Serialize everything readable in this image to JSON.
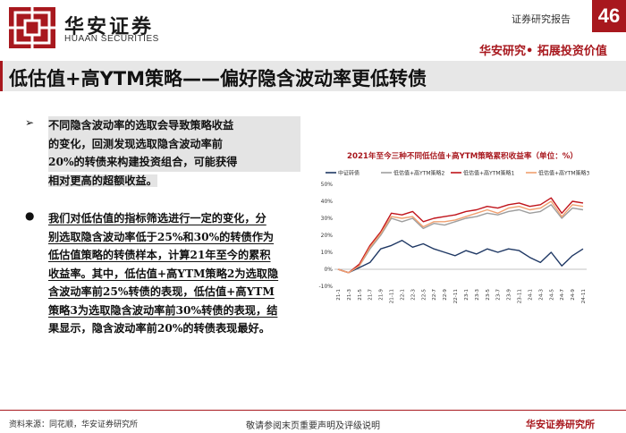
{
  "header": {
    "logo_cn": "华安证券",
    "logo_en": "HUAAN SECURITIES",
    "report_label": "证券研究报告",
    "page_number": "46",
    "slogan": "华安研究• 拓展投资价值",
    "brand_color": "#a8181e"
  },
  "title": "低估值+高YTM策略——偏好隐含波动率更低转债",
  "bullets": [
    {
      "symbol": "➢",
      "lines": [
        "不同隐含波动率的选取会导致策略收益",
        "的变化，回测发现选取隐含波动率前",
        "20%的转债来构建投资组合，可能获得",
        "相对更高的超额收益。"
      ]
    },
    {
      "symbol": "●",
      "lines": [
        "我们对低估值的指标筛选进行一定的变化，分",
        "别选取隐含波动率低于25%和30%的转债作为",
        "低估值策略的转债样本，计算21年至今的累积",
        "收益率。其中，低估值+高YTM策略2为选取隐",
        "含波动率前25%转债的表现，低估值+高YTM",
        "策略3为选取隐含波动率前30%转债的表现，结",
        "果显示，隐含波动率前20%的转债表现最好。"
      ]
    }
  ],
  "chart_data": {
    "type": "line",
    "title": "2021年至今三种不同低估值+高YTM策略累积收益率（单位：%）",
    "xlabel": "",
    "ylabel": "",
    "ylim": [
      -10,
      50
    ],
    "yticks": [
      "-10%",
      "0%",
      "10%",
      "20%",
      "30%",
      "40%",
      "50%"
    ],
    "xticks": [
      "21-1",
      "21-3",
      "21-5",
      "21-7",
      "21-9",
      "21-11",
      "22-1",
      "22-3",
      "22-5",
      "22-7",
      "22-9",
      "22-11",
      "23-1",
      "23-3",
      "23-5",
      "23-7",
      "23-9",
      "23-11",
      "24-1",
      "24-3",
      "24-5",
      "24-7",
      "24-9",
      "24-11"
    ],
    "grid": false,
    "legend_position": "top",
    "series": [
      {
        "name": "中证转债",
        "color": "#1f3864",
        "values": [
          0,
          -2,
          1,
          4,
          12,
          14,
          17,
          13,
          15,
          12,
          10,
          8,
          11,
          9,
          12,
          10,
          12,
          11,
          7,
          4,
          10,
          2,
          8,
          12
        ]
      },
      {
        "name": "低估值+高YTM策略2",
        "color": "#9e9e9e",
        "values": [
          0,
          -2,
          2,
          12,
          20,
          30,
          28,
          30,
          24,
          27,
          26,
          28,
          30,
          31,
          33,
          32,
          34,
          35,
          33,
          34,
          38,
          30,
          36,
          35
        ]
      },
      {
        "name": "低估值+高YTM策略1",
        "color": "#c0141b",
        "values": [
          0,
          -2,
          3,
          14,
          22,
          33,
          32,
          34,
          28,
          30,
          31,
          32,
          34,
          35,
          37,
          36,
          38,
          39,
          37,
          38,
          42,
          33,
          40,
          39
        ]
      },
      {
        "name": "低估值+高YTM策略3",
        "color": "#f0a070",
        "values": [
          0,
          -2,
          2,
          13,
          21,
          31,
          30,
          31,
          25,
          28,
          28,
          29,
          31,
          33,
          35,
          33,
          36,
          37,
          35,
          36,
          40,
          31,
          38,
          37
        ]
      }
    ]
  },
  "footer": {
    "source": "资料来源：同花顺，华安证券研究所",
    "disclaimer": "敬请参阅末页重要声明及评级说明",
    "brand": "华安证券研究所"
  }
}
